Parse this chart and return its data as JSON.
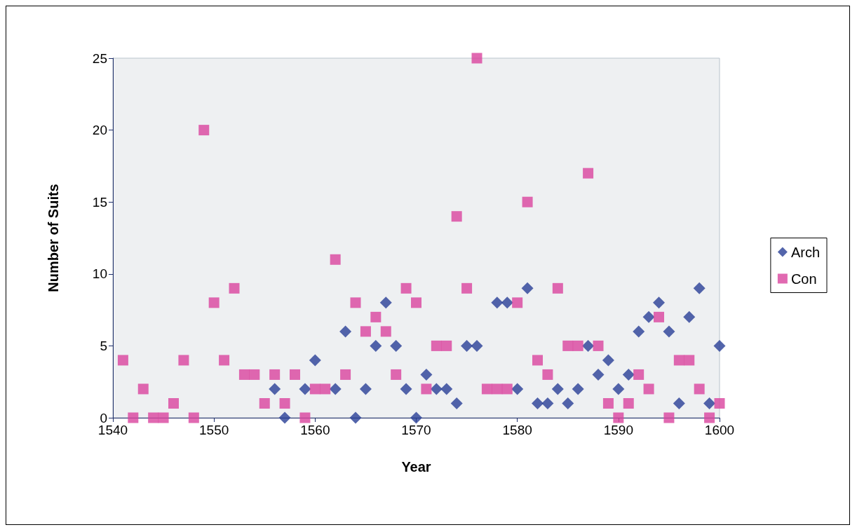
{
  "chart_data": {
    "type": "scatter",
    "xlabel": "Year",
    "ylabel": "Number of Suits",
    "xlim": [
      1540,
      1600
    ],
    "xticks": [
      1540,
      1550,
      1560,
      1570,
      1580,
      1590,
      1600
    ],
    "ylim": [
      0,
      25
    ],
    "yticks": [
      0,
      5,
      10,
      15,
      20,
      25
    ],
    "grid": false,
    "legend": "right",
    "series": [
      {
        "name": "Arch",
        "color": "#283f96",
        "marker": "diamond",
        "x": [
          1556,
          1557,
          1559,
          1560,
          1562,
          1563,
          1564,
          1565,
          1566,
          1567,
          1568,
          1569,
          1570,
          1571,
          1572,
          1573,
          1574,
          1575,
          1576,
          1578,
          1579,
          1580,
          1581,
          1582,
          1583,
          1584,
          1585,
          1586,
          1587,
          1588,
          1589,
          1590,
          1591,
          1592,
          1593,
          1594,
          1595,
          1596,
          1597,
          1598,
          1599,
          1600
        ],
        "values": [
          2,
          0,
          2,
          4,
          2,
          6,
          0,
          2,
          5,
          8,
          5,
          2,
          0,
          3,
          2,
          2,
          1,
          5,
          5,
          8,
          8,
          2,
          9,
          1,
          1,
          2,
          1,
          2,
          5,
          3,
          4,
          2,
          3,
          6,
          7,
          8,
          6,
          1,
          7,
          9,
          1,
          5
        ]
      },
      {
        "name": "Con",
        "color": "#d9449d",
        "marker": "square",
        "x": [
          1541,
          1542,
          1543,
          1544,
          1545,
          1546,
          1547,
          1548,
          1549,
          1550,
          1551,
          1552,
          1553,
          1554,
          1555,
          1556,
          1557,
          1558,
          1559,
          1560,
          1561,
          1562,
          1563,
          1564,
          1565,
          1566,
          1567,
          1568,
          1569,
          1570,
          1571,
          1572,
          1573,
          1574,
          1575,
          1576,
          1577,
          1578,
          1579,
          1580,
          1581,
          1582,
          1583,
          1584,
          1585,
          1586,
          1587,
          1588,
          1589,
          1590,
          1591,
          1592,
          1593,
          1594,
          1595,
          1596,
          1597,
          1598,
          1599,
          1600
        ],
        "values": [
          4,
          0,
          2,
          0,
          0,
          1,
          4,
          0,
          20,
          8,
          4,
          9,
          3,
          3,
          1,
          3,
          1,
          3,
          0,
          2,
          2,
          11,
          3,
          8,
          6,
          7,
          6,
          3,
          9,
          8,
          2,
          5,
          5,
          14,
          9,
          25,
          2,
          2,
          2,
          8,
          15,
          4,
          3,
          9,
          5,
          5,
          17,
          5,
          1,
          0,
          1,
          3,
          2,
          7,
          0,
          4,
          4,
          2,
          0,
          1
        ]
      }
    ]
  }
}
